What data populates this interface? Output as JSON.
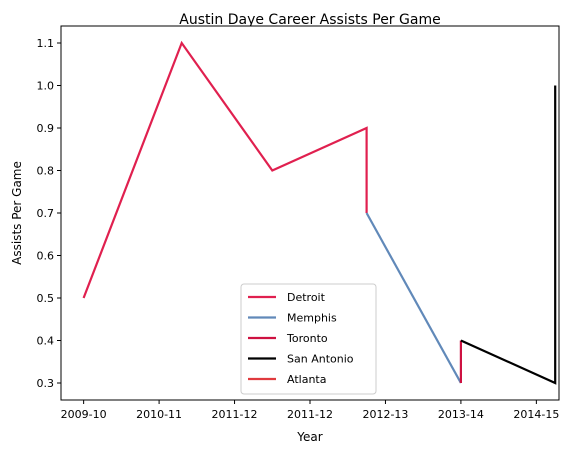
{
  "chart_data": {
    "type": "line",
    "title": "Austin Daye Career Assists Per Game",
    "xlabel": "Year",
    "ylabel": "Assists Per Game",
    "x_ticks": [
      "2009-10",
      "2010-11",
      "2011-12",
      "2011-12",
      "2012-13",
      "2013-14",
      "2014-15"
    ],
    "x_tick_positions": [
      0,
      1,
      2,
      3,
      4,
      5,
      6
    ],
    "xlim": [
      -0.3,
      6.3
    ],
    "ylim": [
      0.26,
      1.14
    ],
    "y_ticks": [
      0.3,
      0.4,
      0.5,
      0.6,
      0.7,
      0.8,
      0.9,
      1.0,
      1.1
    ],
    "y_tick_labels": [
      "0.3",
      "0.4",
      "0.5",
      "0.6",
      "0.7",
      "0.8",
      "0.9",
      "1.0",
      "1.1"
    ],
    "grid": false,
    "legend_position": "bottom-center",
    "series": [
      {
        "name": "Detroit",
        "color": "#e0204f",
        "points": [
          [
            0,
            0.5
          ],
          [
            1.3,
            1.1
          ],
          [
            2.5,
            0.8
          ],
          [
            3.75,
            0.9
          ],
          [
            3.75,
            0.7
          ]
        ]
      },
      {
        "name": "Memphis",
        "color": "#6189b9",
        "points": [
          [
            3.75,
            0.7
          ],
          [
            5,
            0.3
          ]
        ]
      },
      {
        "name": "Toronto",
        "color": "#ce1141",
        "points": [
          [
            5,
            0.3
          ],
          [
            5,
            0.4
          ]
        ]
      },
      {
        "name": "San Antonio",
        "color": "#000000",
        "points": [
          [
            5,
            0.4
          ],
          [
            6.25,
            0.3
          ],
          [
            6.25,
            1.0
          ]
        ]
      },
      {
        "name": "Atlanta",
        "color": "#e03a3e",
        "points": [
          [
            5,
            0.3
          ],
          [
            5,
            0.3
          ]
        ]
      }
    ]
  }
}
